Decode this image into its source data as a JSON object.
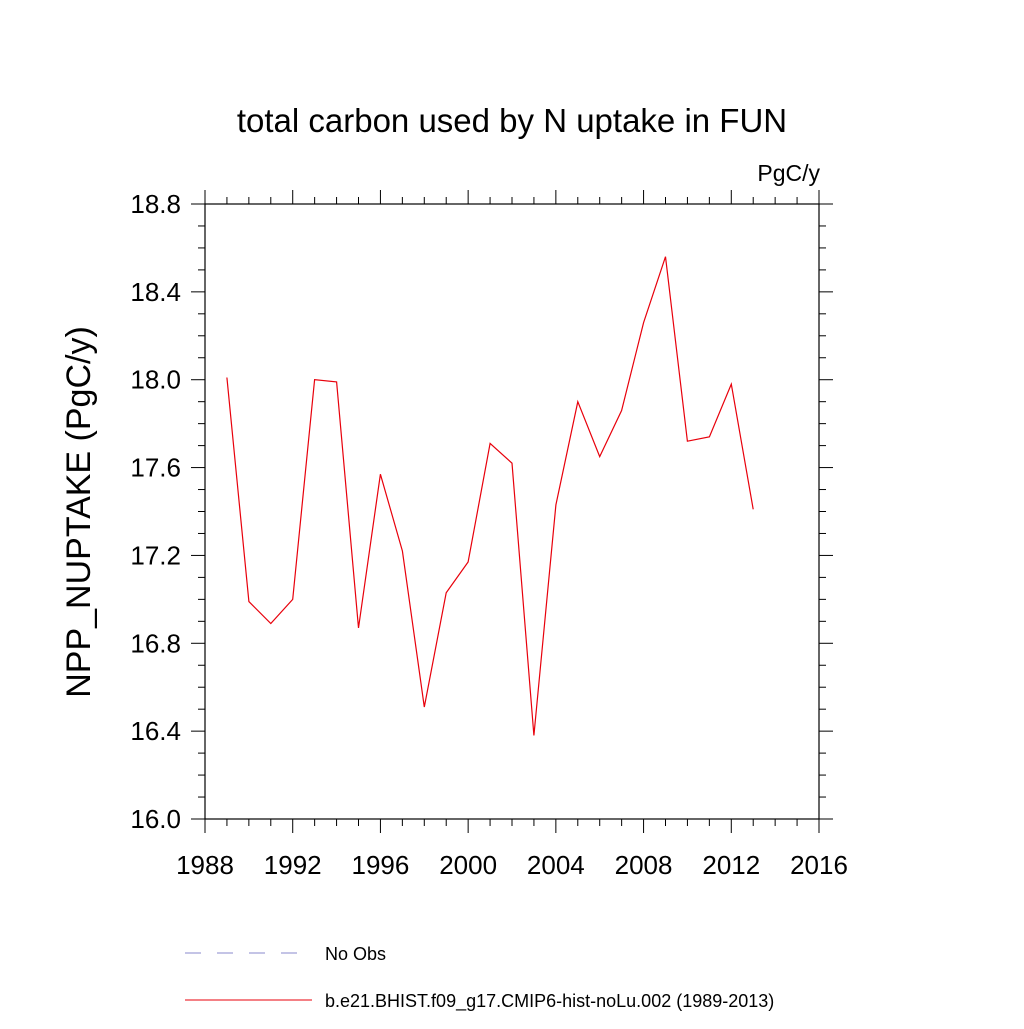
{
  "chart_data": {
    "type": "line",
    "title": "total carbon used by N uptake in FUN",
    "units_label": "PgC/y",
    "xlabel": "",
    "ylabel": "NPP_NUPTAKE  (PgC/y)",
    "xlim": [
      1988,
      2016
    ],
    "ylim": [
      16.0,
      18.8
    ],
    "x_ticks": [
      1988,
      1992,
      1996,
      2000,
      2004,
      2008,
      2012,
      2016
    ],
    "y_ticks": [
      16.0,
      16.4,
      16.8,
      17.2,
      17.6,
      18.0,
      18.4,
      18.8
    ],
    "x_tick_labels": [
      "1988",
      "1992",
      "1996",
      "2000",
      "2004",
      "2008",
      "2012",
      "2016"
    ],
    "y_tick_labels": [
      "16.0",
      "16.4",
      "16.8",
      "17.2",
      "17.6",
      "18.0",
      "18.4",
      "18.8"
    ],
    "grid": false,
    "legend_position": "bottom",
    "series": [
      {
        "name": "b.e21.BHIST.f09_g17.CMIP6-hist-noLu.002 (1989-2013)",
        "color": "#e8000b",
        "dash": "solid",
        "x": [
          1989,
          1990,
          1991,
          1992,
          1993,
          1994,
          1995,
          1996,
          1997,
          1998,
          1999,
          2000,
          2001,
          2002,
          2003,
          2004,
          2005,
          2006,
          2007,
          2008,
          2009,
          2010,
          2011,
          2012,
          2013
        ],
        "y": [
          18.01,
          16.99,
          16.89,
          17.0,
          18.0,
          17.99,
          16.87,
          17.57,
          17.22,
          16.51,
          17.03,
          17.17,
          17.71,
          17.62,
          16.38,
          17.43,
          17.9,
          17.65,
          17.86,
          18.26,
          18.56,
          17.72,
          17.74,
          17.98,
          17.41
        ]
      }
    ],
    "legend": [
      {
        "label": "No Obs",
        "color": "#8a8acc",
        "dash": "dashed"
      },
      {
        "label": "b.e21.BHIST.f09_g17.CMIP6-hist-noLu.002 (1989-2013)",
        "color": "#e8000b",
        "dash": "solid"
      }
    ]
  }
}
